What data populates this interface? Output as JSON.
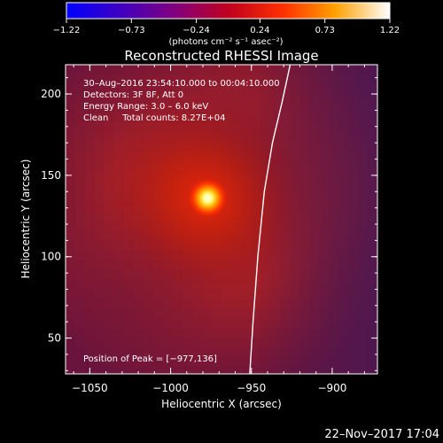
{
  "chart_data": {
    "type": "heatmap",
    "title": "Reconstructed RHESSI Image",
    "xlabel": "Heliocentric X (arcsec)",
    "ylabel": "Heliocentric Y (arcsec)",
    "xlim": [
      -1065,
      -872
    ],
    "ylim": [
      28,
      218
    ],
    "xticks": [
      -1050,
      -1000,
      -950,
      -900
    ],
    "yticks": [
      50,
      100,
      150,
      200
    ],
    "xtick_labels": [
      "−1050",
      "−1000",
      "−950",
      "−900"
    ],
    "ytick_labels": [
      "50",
      "100",
      "150",
      "200"
    ],
    "colorbar": {
      "ticks": [
        -1.22,
        -0.73,
        -0.24,
        0.24,
        0.73,
        1.22
      ],
      "tick_labels": [
        "−1.22",
        "−0.73",
        "−0.24",
        "0.24",
        "0.73",
        "1.22"
      ],
      "units_label": "(photons cm⁻² s⁻¹ asec⁻²)",
      "colormap": "rhessi-blue-purple-red-yellow-white"
    },
    "annotations": [
      "30–Aug–2016 23:54:10.000 to 00:04:10.000",
      "Detectors: 3F 8F, Att 0",
      "Energy Range: 3.0 – 6.0 keV",
      "Clean     Total counts: 8.27E+04"
    ],
    "peak": {
      "x": -977,
      "y": 136,
      "label": "Position of Peak = [−977,136]"
    },
    "limb_curve": [
      [
        -951,
        28
      ],
      [
        -949,
        60
      ],
      [
        -946,
        100
      ],
      [
        -942,
        140
      ],
      [
        -937,
        170
      ],
      [
        -931,
        195
      ],
      [
        -926,
        218
      ]
    ]
  },
  "footer": {
    "date": "22–Nov–2017 17:04"
  }
}
